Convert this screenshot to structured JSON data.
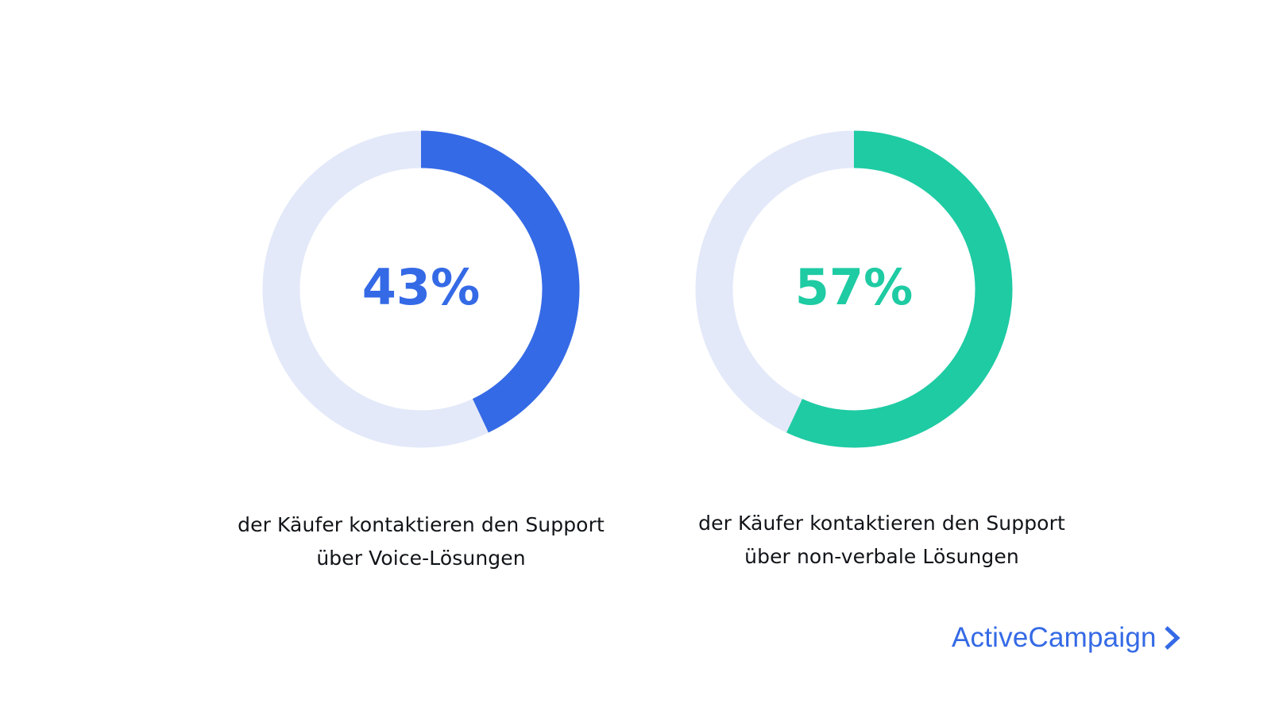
{
  "chart_data": [
    {
      "type": "pie",
      "value": 43,
      "value_label": "43%",
      "color": "#356ae6",
      "track_color": "#e3e9f9",
      "caption": [
        "der Käufer kontaktieren den Support",
        "über Voice-Lösungen"
      ]
    },
    {
      "type": "pie",
      "value": 57,
      "value_label": "57%",
      "color": "#1ecba3",
      "track_color": "#e3e9f9",
      "caption": [
        "der Käufer kontaktieren den Support",
        "über non-verbale Lösungen"
      ]
    }
  ],
  "brand": {
    "name": "ActiveCampaign",
    "icon": "chevron-right-icon",
    "color": "#356ae6"
  }
}
